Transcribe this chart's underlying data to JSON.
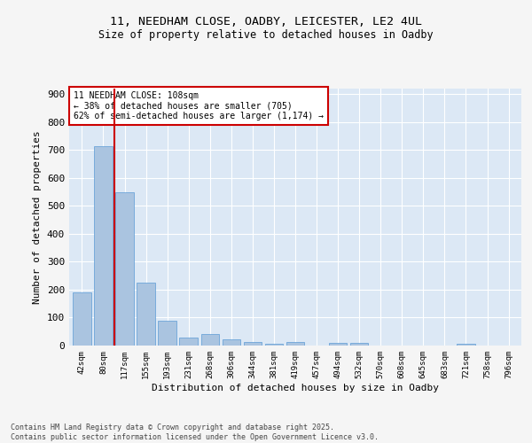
{
  "title_line1": "11, NEEDHAM CLOSE, OADBY, LEICESTER, LE2 4UL",
  "title_line2": "Size of property relative to detached houses in Oadby",
  "xlabel": "Distribution of detached houses by size in Oadby",
  "ylabel": "Number of detached properties",
  "footer_line1": "Contains HM Land Registry data © Crown copyright and database right 2025.",
  "footer_line2": "Contains public sector information licensed under the Open Government Licence v3.0.",
  "annotation_line1": "11 NEEDHAM CLOSE: 108sqm",
  "annotation_line2": "← 38% of detached houses are smaller (705)",
  "annotation_line3": "62% of semi-detached houses are larger (1,174) →",
  "bar_labels": [
    "42sqm",
    "80sqm",
    "117sqm",
    "155sqm",
    "193sqm",
    "231sqm",
    "268sqm",
    "306sqm",
    "344sqm",
    "381sqm",
    "419sqm",
    "457sqm",
    "494sqm",
    "532sqm",
    "570sqm",
    "608sqm",
    "645sqm",
    "683sqm",
    "721sqm",
    "758sqm",
    "796sqm"
  ],
  "bar_values": [
    190,
    714,
    548,
    225,
    90,
    30,
    40,
    22,
    12,
    7,
    12,
    0,
    8,
    8,
    0,
    0,
    0,
    0,
    7,
    0,
    0
  ],
  "bar_color": "#aac4e0",
  "bar_edge_color": "#5b9bd5",
  "bg_color": "#dce8f5",
  "grid_color": "#ffffff",
  "fig_bg_color": "#f5f5f5",
  "vline_x": 1.5,
  "vline_color": "#cc0000",
  "annotation_box_color": "#cc0000",
  "ylim": [
    0,
    920
  ],
  "yticks": [
    0,
    100,
    200,
    300,
    400,
    500,
    600,
    700,
    800,
    900
  ]
}
